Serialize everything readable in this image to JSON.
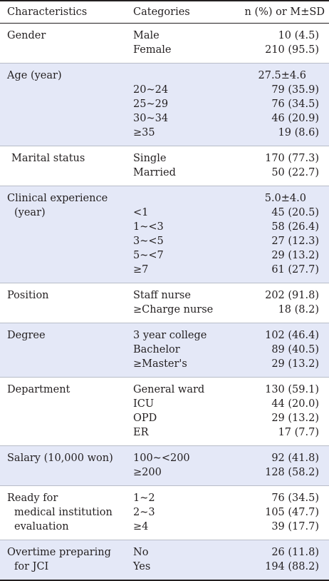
{
  "header": {
    "characteristics": "Characteristics",
    "categories": "Categories",
    "value": "n (%) or M±SD"
  },
  "rows": [
    {
      "characteristic": [
        "Gender"
      ],
      "categories": [
        "Male",
        "Female"
      ],
      "values": [
        "10 (4.5)",
        "210 (95.5)"
      ],
      "shaded": false
    },
    {
      "characteristic": [
        "Age (year)"
      ],
      "summary": "27.5±4.6",
      "categories": [
        "20~24",
        "25~29",
        "30~34",
        "≥35"
      ],
      "values": [
        "79 (35.9)",
        "76 (34.5)",
        "46 (20.9)",
        "19 (8.6)"
      ],
      "shaded": true
    },
    {
      "characteristic": [
        "Marital status"
      ],
      "categories": [
        "Single",
        "Married"
      ],
      "values": [
        "170 (77.3)",
        "50 (22.7)"
      ],
      "shaded": false
    },
    {
      "characteristic": [
        "Clinical experience",
        "(year)"
      ],
      "summary": "5.0±4.0",
      "categories": [
        "<1",
        "1~<3",
        "3~<5",
        "5~<7",
        "≥7"
      ],
      "values": [
        "45 (20.5)",
        "58 (26.4)",
        "27 (12.3)",
        "29 (13.2)",
        "61 (27.7)"
      ],
      "shaded": true
    },
    {
      "characteristic": [
        "Position"
      ],
      "categories": [
        "Staff nurse",
        "≥Charge nurse"
      ],
      "values": [
        "202 (91.8)",
        "18 (8.2)"
      ],
      "shaded": false
    },
    {
      "characteristic": [
        "Degree"
      ],
      "categories": [
        "3 year college",
        "Bachelor",
        "≥Master's"
      ],
      "values": [
        "102 (46.4)",
        "89 (40.5)",
        "29 (13.2)"
      ],
      "shaded": true
    },
    {
      "characteristic": [
        "Department"
      ],
      "categories": [
        "General ward",
        "ICU",
        "OPD",
        "ER"
      ],
      "values": [
        "130 (59.1)",
        "44 (20.0)",
        "29 (13.2)",
        "17 (7.7)"
      ],
      "shaded": false
    },
    {
      "characteristic": [
        "Salary (10,000 won)"
      ],
      "categories": [
        "100~<200",
        "≥200"
      ],
      "values": [
        "92 (41.8)",
        "128 (58.2)"
      ],
      "shaded": true
    },
    {
      "characteristic": [
        "Ready for",
        "medical institution",
        "evaluation"
      ],
      "categories": [
        "1~2",
        "2~3",
        "≥4"
      ],
      "values": [
        "76 (34.5)",
        "105 (47.7)",
        "39 (17.7)"
      ],
      "shaded": false
    },
    {
      "characteristic": [
        "Overtime preparing",
        "for JCI"
      ],
      "categories": [
        "No",
        "Yes"
      ],
      "values": [
        "26 (11.8)",
        "194 (88.2)"
      ],
      "shaded": true
    }
  ]
}
